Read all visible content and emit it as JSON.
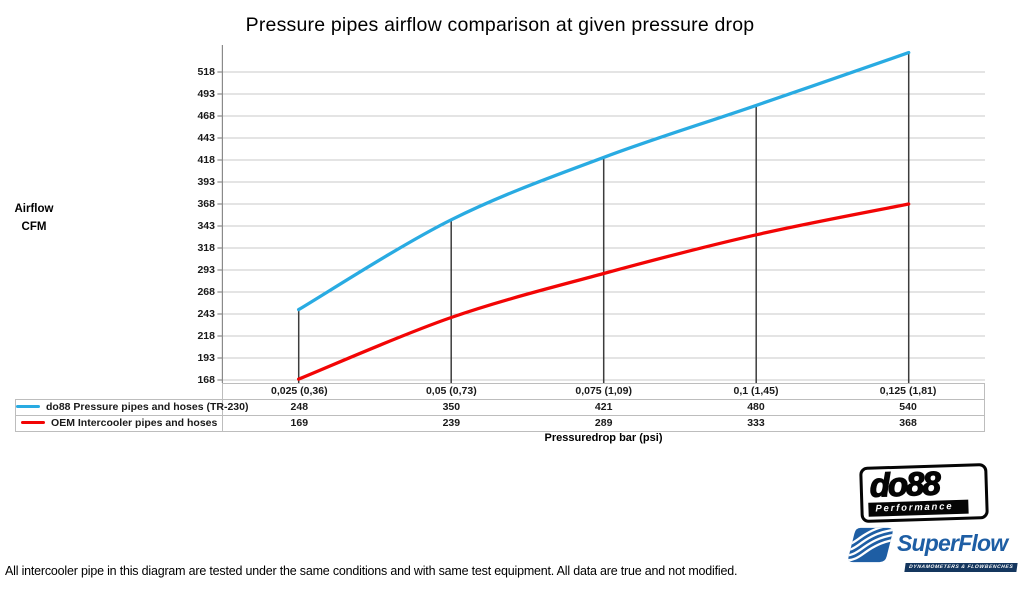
{
  "footer": "All intercooler pipe in this diagram are tested under the same conditions and with same test equipment. All data are true and not modified.",
  "chart_data": {
    "type": "line",
    "title": "Pressure pipes airflow comparison at given pressure drop",
    "ylabel": "Airflow\nCFM",
    "xlabel": "Pressuredrop bar (psi)",
    "categories": [
      "0,025 (0,36)",
      "0,05 (0,73)",
      "0,075 (1,09)",
      "0,1 (1,45)",
      "0,125 (1,81)"
    ],
    "series": [
      {
        "name": "do88 Pressure pipes and hoses (TR-230)",
        "color": "#29abe2",
        "values": [
          248,
          350,
          421,
          480,
          540
        ]
      },
      {
        "name": "OEM Intercooler pipes and hoses",
        "color": "#f20505",
        "values": [
          169,
          239,
          289,
          333,
          368
        ]
      }
    ],
    "yticks": [
      168,
      193,
      218,
      243,
      268,
      293,
      318,
      343,
      368,
      393,
      418,
      443,
      468,
      493,
      518
    ],
    "ylim": [
      168,
      543
    ],
    "grid": true,
    "legend_position": "table-left",
    "colors": {
      "gridline": "#c8c8c8",
      "axis": "#8a8a8a",
      "dropline": "#3c3c3c"
    }
  },
  "logos": {
    "do88": {
      "text": "do88",
      "sub": "Performance"
    },
    "superflow": {
      "text": "SuperFlow",
      "sub": "DYNAMOMETERS & FLOWBENCHES"
    }
  }
}
